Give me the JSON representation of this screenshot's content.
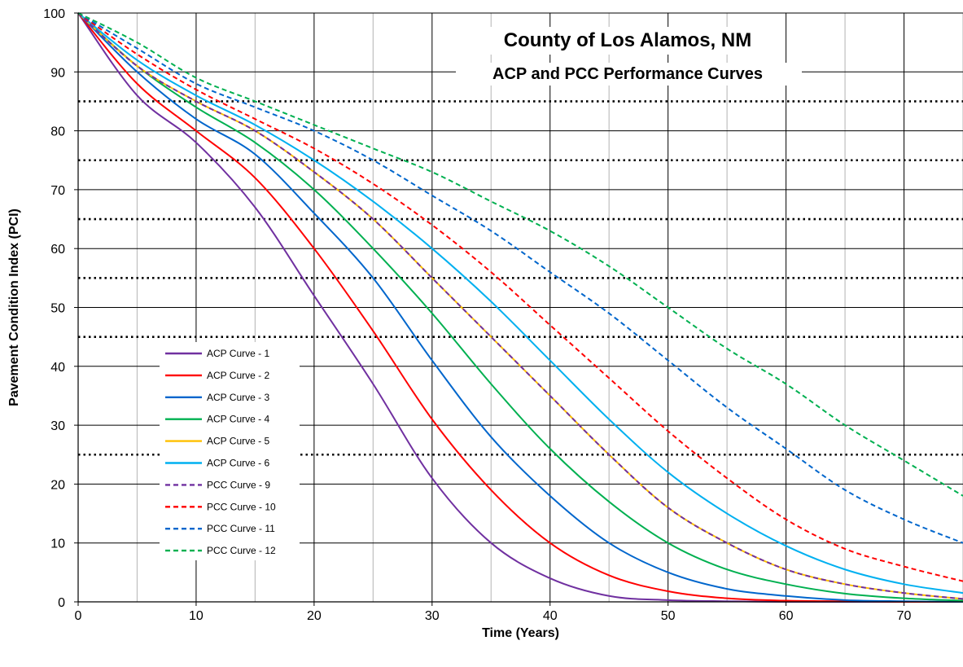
{
  "chart_data": {
    "type": "line",
    "title": "County of Los Alamos, NM",
    "subtitle": "ACP and PCC Performance Curves",
    "xlabel": "Time (Years)",
    "ylabel": "Pavement Condition Index (PCI)",
    "xlim": [
      0,
      75
    ],
    "ylim": [
      0,
      100
    ],
    "x_ticks": [
      0,
      10,
      20,
      30,
      40,
      50,
      60,
      70
    ],
    "y_ticks": [
      0,
      10,
      20,
      30,
      40,
      50,
      60,
      70,
      80,
      90,
      100
    ],
    "x_minor_gridlines": [
      5,
      15,
      25,
      35,
      45,
      55,
      65,
      75
    ],
    "threshold_lines": [
      85,
      75,
      65,
      55,
      45,
      25
    ],
    "threshold_style": "black dotted",
    "grid": true,
    "legend_position": "lower-left",
    "x": [
      0,
      5,
      10,
      15,
      20,
      25,
      30,
      35,
      40,
      45,
      50,
      55,
      60,
      65,
      70,
      75
    ],
    "series": [
      {
        "name": "ACP Curve - 1",
        "color": "#7030A0",
        "style": "solid",
        "values": [
          100,
          86,
          78,
          67,
          52,
          37,
          21,
          10,
          4,
          1,
          0.3,
          0.1,
          0,
          0,
          0,
          0
        ]
      },
      {
        "name": "ACP Curve - 2",
        "color": "#FF0000",
        "style": "solid",
        "values": [
          100,
          88,
          80,
          72,
          60,
          46,
          31,
          19,
          10,
          4.5,
          1.8,
          0.6,
          0.2,
          0.1,
          0,
          0
        ]
      },
      {
        "name": "ACP Curve - 3",
        "color": "#0066CC",
        "style": "solid",
        "values": [
          100,
          90,
          82,
          76,
          66,
          55,
          41,
          28,
          18,
          10,
          5,
          2.2,
          1,
          0.3,
          0.1,
          0
        ]
      },
      {
        "name": "ACP Curve - 4",
        "color": "#00B050",
        "style": "solid",
        "values": [
          100,
          91,
          84,
          78,
          70,
          60,
          49,
          37,
          26,
          17,
          10,
          5.5,
          3,
          1.4,
          0.6,
          0.2
        ]
      },
      {
        "name": "ACP Curve - 5",
        "color": "#FFC000",
        "style": "solid",
        "values": [
          100,
          91,
          85,
          80,
          73,
          65,
          55,
          45,
          35,
          25,
          16,
          10,
          5.5,
          3,
          1.5,
          0.5
        ]
      },
      {
        "name": "ACP Curve - 6",
        "color": "#00B0F0",
        "style": "solid",
        "values": [
          100,
          92,
          86,
          81,
          75,
          68,
          60,
          51,
          41,
          31,
          22,
          15,
          9.5,
          5.5,
          3,
          1.5
        ]
      },
      {
        "name": "PCC Curve - 9",
        "color": "#7030A0",
        "style": "dashed",
        "values": [
          100,
          91,
          85,
          80,
          73,
          65,
          55,
          45,
          35,
          25,
          16,
          10,
          5.5,
          3,
          1.5,
          0.5
        ]
      },
      {
        "name": "PCC Curve - 10",
        "color": "#FF0000",
        "style": "dashed",
        "values": [
          100,
          93,
          87,
          82,
          77,
          71,
          64,
          56,
          47,
          38,
          29,
          21,
          14,
          9,
          6,
          3.5
        ]
      },
      {
        "name": "PCC Curve - 11",
        "color": "#0066CC",
        "style": "dashed",
        "values": [
          100,
          94,
          88,
          84,
          80,
          75,
          69,
          63,
          56,
          49,
          41,
          33,
          26,
          19,
          14,
          10
        ]
      },
      {
        "name": "PCC Curve - 12",
        "color": "#00B050",
        "style": "dashed",
        "values": [
          100,
          95,
          89,
          85,
          81,
          77,
          73,
          68,
          63,
          57,
          50,
          43,
          37,
          30,
          24,
          18
        ]
      }
    ]
  }
}
